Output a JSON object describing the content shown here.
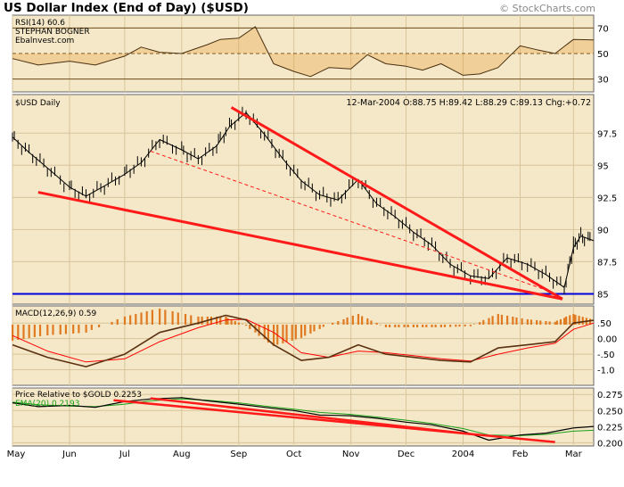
{
  "header": {
    "title": "US Dollar Index (End of Day) ($USD)",
    "watermark": "© StockCharts.com"
  },
  "colors": {
    "panel_bg": "#f5e8c8",
    "grid": "#d8c49a",
    "price_line": "#000000",
    "trendline": "#ff1a1a",
    "support": "#0000dd",
    "macd": "#5a3010",
    "signal": "#ff0000",
    "histogram": "#e07a20",
    "ema": "#18a018"
  },
  "chart_data": [
    {
      "type": "line",
      "name": "rsi",
      "labels": [
        "RSI(14) 60.6",
        "STEPHAN BOGNER",
        "Ebalnvest.com"
      ],
      "yticks": [
        30,
        50,
        70
      ],
      "ylim": [
        20,
        80
      ],
      "x": [
        "2003-05-01",
        "2003-05-15",
        "2003-06-01",
        "2003-06-15",
        "2003-07-01",
        "2003-07-10",
        "2003-07-20",
        "2003-08-01",
        "2003-08-15",
        "2003-08-22",
        "2003-09-01",
        "2003-09-10",
        "2003-09-20",
        "2003-10-01",
        "2003-10-10",
        "2003-10-20",
        "2003-11-01",
        "2003-11-10",
        "2003-11-20",
        "2003-12-01",
        "2003-12-10",
        "2003-12-20",
        "2004-01-01",
        "2004-01-10",
        "2004-01-20",
        "2004-02-01",
        "2004-02-10",
        "2004-02-20",
        "2004-03-01",
        "2004-03-12"
      ],
      "values": [
        46,
        41,
        44,
        41,
        48,
        55,
        51,
        50,
        57,
        61,
        62,
        71,
        42,
        36,
        32,
        39,
        38,
        49,
        42,
        40,
        37,
        42,
        33,
        34,
        39,
        56,
        53,
        50,
        61,
        60.6
      ]
    },
    {
      "type": "line",
      "name": "price",
      "label": "$USD Daily",
      "info": "12-Mar-2004  O:88.75  H:89.42  L:88.29  C:89.13  Chg:+0.72",
      "yticks": [
        85.0,
        87.5,
        90.0,
        92.5,
        95.0,
        97.5
      ],
      "ylim": [
        84.2,
        100.5
      ],
      "x": [
        "2003-05-01",
        "2003-05-10",
        "2003-05-20",
        "2003-06-01",
        "2003-06-10",
        "2003-06-20",
        "2003-07-01",
        "2003-07-10",
        "2003-07-20",
        "2003-08-01",
        "2003-08-10",
        "2003-08-20",
        "2003-08-27",
        "2003-09-05",
        "2003-09-15",
        "2003-09-25",
        "2003-10-05",
        "2003-10-15",
        "2003-10-25",
        "2003-11-05",
        "2003-11-15",
        "2003-11-25",
        "2003-12-05",
        "2003-12-15",
        "2003-12-25",
        "2004-01-05",
        "2004-01-15",
        "2004-01-25",
        "2004-02-05",
        "2004-02-15",
        "2004-02-25",
        "2004-03-01",
        "2004-03-05",
        "2004-03-12"
      ],
      "values": [
        97.2,
        96,
        94.8,
        93.3,
        92.6,
        93.4,
        94.3,
        95.2,
        97,
        96.2,
        95.5,
        96.5,
        98,
        99.1,
        97.4,
        95.5,
        93.8,
        92.7,
        92.3,
        93.9,
        92,
        91,
        89.8,
        88.8,
        87.3,
        86.4,
        86.2,
        87.8,
        87.3,
        86.5,
        85.5,
        88.6,
        89.5,
        89.13
      ],
      "trendlines": [
        {
          "kind": "upper",
          "start": [
            "2003-08-28",
            99.5
          ],
          "end": [
            "2004-02-24",
            84.6
          ]
        },
        {
          "kind": "lower",
          "start": [
            "2003-05-15",
            92.9
          ],
          "end": [
            "2004-02-24",
            84.6
          ]
        },
        {
          "kind": "dashed",
          "start": [
            "2003-07-15",
            96.1
          ],
          "end": [
            "2004-02-15",
            85.3
          ]
        }
      ],
      "support_level": 85.0
    },
    {
      "type": "line",
      "name": "macd",
      "label": "MACD(12,26,9) 0.59",
      "yticks": [
        0.5,
        0.0,
        -0.5,
        -1.0
      ],
      "ytick_labels": [
        ".50",
        "0.00",
        "-.50",
        "-1.0"
      ],
      "ylim": [
        -1.5,
        1.05
      ],
      "x": [
        "2003-05-01",
        "2003-05-20",
        "2003-06-10",
        "2003-07-01",
        "2003-07-20",
        "2003-08-10",
        "2003-08-25",
        "2003-09-05",
        "2003-09-20",
        "2003-10-05",
        "2003-10-20",
        "2003-11-05",
        "2003-11-20",
        "2003-12-05",
        "2003-12-20",
        "2004-01-05",
        "2004-01-20",
        "2004-02-05",
        "2004-02-20",
        "2004-03-01",
        "2004-03-12"
      ],
      "series": [
        {
          "name": "MACD",
          "values": [
            -0.2,
            -0.6,
            -0.9,
            -0.5,
            0.2,
            0.5,
            0.75,
            0.6,
            -0.2,
            -0.7,
            -0.6,
            -0.2,
            -0.5,
            -0.6,
            -0.7,
            -0.75,
            -0.3,
            -0.2,
            -0.1,
            0.5,
            0.59
          ]
        },
        {
          "name": "Signal",
          "values": [
            0.1,
            -0.4,
            -0.75,
            -0.65,
            -0.1,
            0.35,
            0.6,
            0.62,
            0.2,
            -0.45,
            -0.6,
            -0.4,
            -0.45,
            -0.55,
            -0.65,
            -0.72,
            -0.5,
            -0.3,
            -0.15,
            0.3,
            0.5
          ]
        }
      ]
    },
    {
      "type": "line",
      "name": "relative",
      "label": "Price Relative to $GOLD  0.2253",
      "ema_label": "EMA(20) 0.2193",
      "yticks": [
        0.2,
        0.225,
        0.25,
        0.275
      ],
      "ytick_labels": [
        "0.200",
        "0.225",
        "0.250",
        "0.275"
      ],
      "ylim": [
        0.195,
        0.285
      ],
      "x": [
        "2003-05-01",
        "2003-05-15",
        "2003-06-01",
        "2003-06-15",
        "2003-07-01",
        "2003-07-15",
        "2003-08-01",
        "2003-08-15",
        "2003-09-01",
        "2003-09-15",
        "2003-10-01",
        "2003-10-15",
        "2003-11-01",
        "2003-11-15",
        "2003-12-01",
        "2003-12-15",
        "2004-01-01",
        "2004-01-15",
        "2004-02-01",
        "2004-02-15",
        "2004-03-01",
        "2004-03-12"
      ],
      "series": [
        {
          "name": "Price Relative",
          "values": [
            0.262,
            0.256,
            0.258,
            0.255,
            0.264,
            0.268,
            0.27,
            0.265,
            0.26,
            0.255,
            0.25,
            0.243,
            0.242,
            0.238,
            0.232,
            0.228,
            0.218,
            0.204,
            0.212,
            0.215,
            0.223,
            0.2253
          ]
        },
        {
          "name": "EMA(20)",
          "values": [
            0.263,
            0.259,
            0.257,
            0.256,
            0.26,
            0.265,
            0.268,
            0.266,
            0.262,
            0.257,
            0.252,
            0.247,
            0.244,
            0.24,
            0.235,
            0.23,
            0.222,
            0.212,
            0.211,
            0.213,
            0.218,
            0.2193
          ]
        }
      ],
      "trendlines": [
        {
          "kind": "upper",
          "start": [
            "2003-06-25",
            0.266
          ],
          "end": [
            "2004-02-20",
            0.201
          ]
        },
        {
          "kind": "lower",
          "start": [
            "2003-07-15",
            0.269
          ],
          "end": [
            "2004-01-10",
            0.212
          ]
        }
      ]
    }
  ],
  "x_axis": {
    "ticks": [
      {
        "label": "May",
        "date": "2003-05-01"
      },
      {
        "label": "Jun",
        "date": "2003-06-01"
      },
      {
        "label": "Jul",
        "date": "2003-07-01"
      },
      {
        "label": "Aug",
        "date": "2003-08-01"
      },
      {
        "label": "Sep",
        "date": "2003-09-01"
      },
      {
        "label": "Oct",
        "date": "2003-10-01"
      },
      {
        "label": "Nov",
        "date": "2003-11-01"
      },
      {
        "label": "Dec",
        "date": "2003-12-01"
      },
      {
        "label": "2004",
        "date": "2004-01-01"
      },
      {
        "label": "Feb",
        "date": "2004-02-01"
      },
      {
        "label": "Mar",
        "date": "2004-03-01"
      }
    ]
  }
}
